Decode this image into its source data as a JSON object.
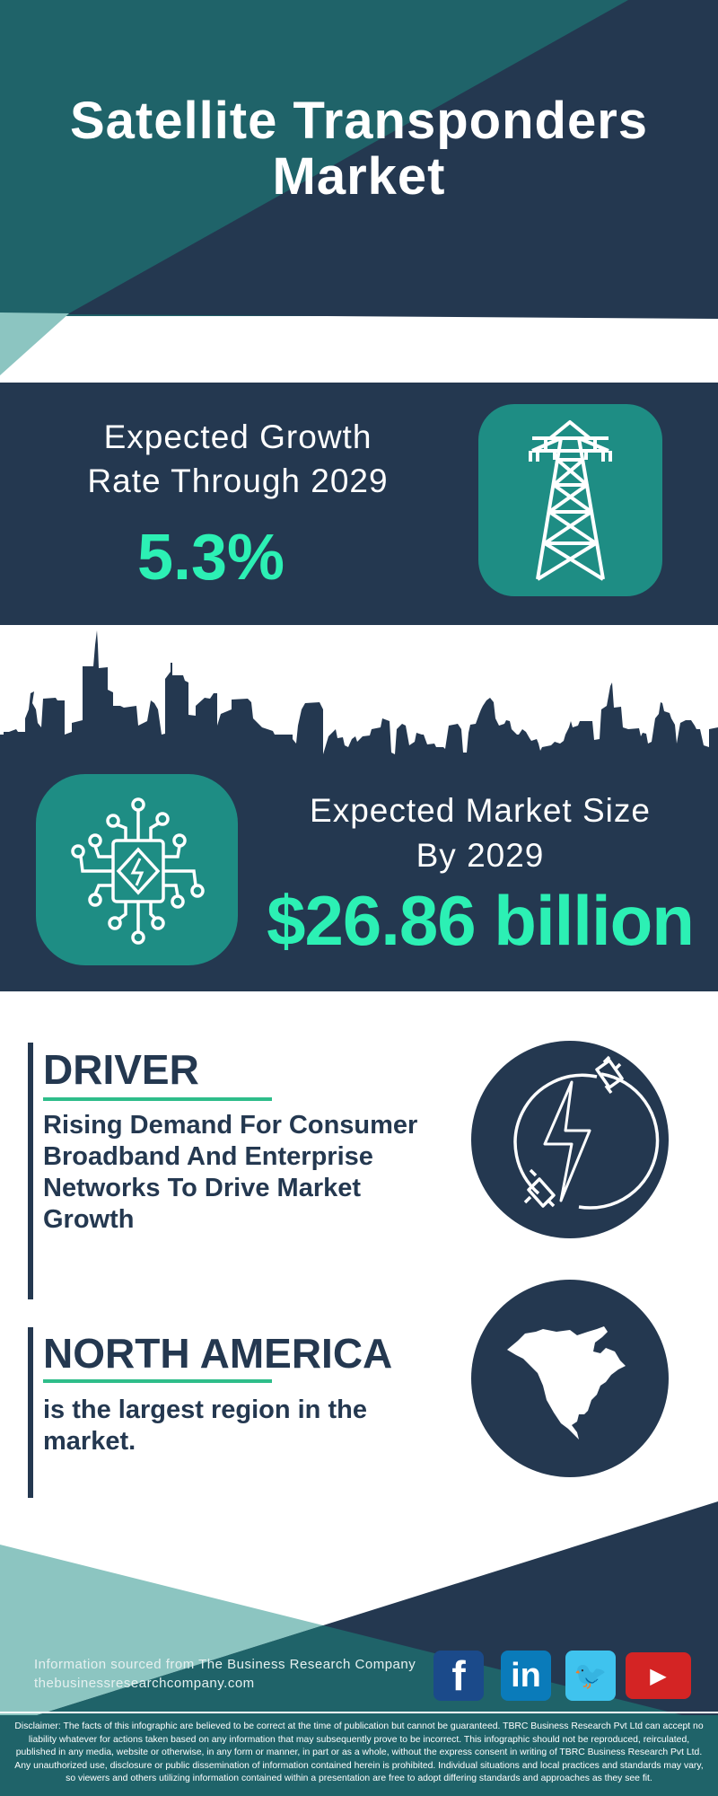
{
  "title": {
    "line1": "Satellite Transponders",
    "line2": "Market"
  },
  "growth": {
    "label_line1": "Expected Growth",
    "label_line2": "Rate Through 2029",
    "value": "5.3%",
    "icon": "transmission-tower-icon"
  },
  "market_size": {
    "label_line1": "Expected Market Size",
    "label_line2": "By 2029",
    "value": "$26.86 billion",
    "icon": "circuit-chip-icon"
  },
  "driver": {
    "heading": "DRIVER",
    "text": "Rising Demand For Consumer Broadband And Enterprise Networks To Drive Market Growth",
    "icon": "power-plug-icon"
  },
  "region": {
    "heading": "NORTH AMERICA",
    "text": "is the largest region in the market.",
    "icon": "north-america-map-icon"
  },
  "footer": {
    "source": "Information sourced from The Business Research Company",
    "website": "thebusinessresearchcompany.com",
    "social": [
      {
        "name": "facebook",
        "glyph": "f",
        "color": "#1b4a8a"
      },
      {
        "name": "linkedin",
        "glyph": "in",
        "color": "#0a7bba"
      },
      {
        "name": "twitter",
        "glyph": "🐦",
        "color": "#3fc3ee"
      },
      {
        "name": "youtube",
        "glyph": "▶",
        "color": "#d42424"
      }
    ]
  },
  "disclaimer": "Disclaimer: The facts of this infographic are believed to be correct at the time of publication but cannot be guaranteed. TBRC Business Research Pvt Ltd can accept no liability whatever for actions taken based on any information that may subsequently prove to be incorrect. This infographic should not be reproduced, reirculated, published in any media, website or otherwise, in any form or manner, in part or as a whole, without the express consent in writing of TBRC Business Research Pvt Ltd. Any unauthorized use, disclosure or public dissemination of information contained herein is prohibited. Individual situations and local practices and standards may vary, so viewers and others utilizing information contained within a presentation are free to adopt differing standards and approaches as they see fit.",
  "colors": {
    "navy": "#243850",
    "teal": "#1f6369",
    "light_teal": "#8cc5c1",
    "accent_green": "#2cf0b4",
    "icon_teal": "#1e8d84",
    "underline_green": "#2ebd8a"
  }
}
